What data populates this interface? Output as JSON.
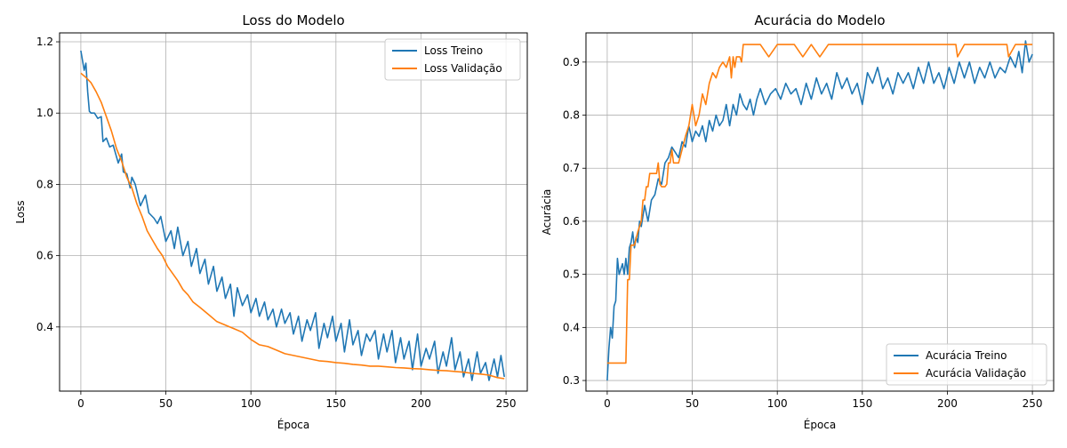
{
  "chart_data": [
    {
      "type": "line",
      "title": "Loss do Modelo",
      "xlabel": "Época",
      "ylabel": "Loss",
      "xlim": [
        -12.5,
        262.5
      ],
      "ylim": [
        0.22,
        1.225
      ],
      "xticks": [
        0,
        50,
        100,
        150,
        200,
        250
      ],
      "xtick_labels": [
        "0",
        "50",
        "100",
        "150",
        "200",
        "250"
      ],
      "yticks": [
        0.4,
        0.6,
        0.8,
        1.0,
        1.2
      ],
      "ytick_labels": [
        "0.4",
        "0.6",
        "0.8",
        "1.0",
        "1.2"
      ],
      "grid": true,
      "legend_position": "upper right",
      "series": [
        {
          "name": "Loss Treino",
          "color": "#1f77b4",
          "x": [
            0,
            2,
            3,
            4,
            5,
            6,
            8,
            10,
            12,
            13,
            15,
            17,
            19,
            22,
            24,
            25,
            27,
            29,
            30,
            32,
            35,
            38,
            40,
            43,
            45,
            47,
            50,
            53,
            55,
            57,
            60,
            63,
            65,
            68,
            70,
            73,
            75,
            78,
            80,
            83,
            85,
            88,
            90,
            92,
            95,
            98,
            100,
            103,
            105,
            108,
            110,
            113,
            115,
            118,
            120,
            123,
            125,
            128,
            130,
            133,
            135,
            138,
            140,
            143,
            145,
            148,
            150,
            153,
            155,
            158,
            160,
            163,
            165,
            168,
            170,
            173,
            175,
            178,
            180,
            183,
            185,
            188,
            190,
            193,
            195,
            198,
            200,
            203,
            205,
            208,
            210,
            213,
            215,
            218,
            220,
            223,
            225,
            228,
            230,
            233,
            235,
            238,
            240,
            243,
            245,
            247,
            249
          ],
          "y": [
            1.175,
            1.12,
            1.14,
            1.06,
            1.005,
            1.0,
            1.0,
            0.985,
            0.99,
            0.92,
            0.93,
            0.905,
            0.91,
            0.86,
            0.885,
            0.835,
            0.83,
            0.79,
            0.82,
            0.8,
            0.74,
            0.77,
            0.72,
            0.705,
            0.69,
            0.71,
            0.64,
            0.67,
            0.62,
            0.68,
            0.6,
            0.64,
            0.57,
            0.62,
            0.55,
            0.59,
            0.52,
            0.57,
            0.5,
            0.54,
            0.48,
            0.52,
            0.43,
            0.51,
            0.46,
            0.49,
            0.44,
            0.48,
            0.43,
            0.47,
            0.42,
            0.45,
            0.4,
            0.45,
            0.41,
            0.44,
            0.38,
            0.43,
            0.36,
            0.42,
            0.39,
            0.44,
            0.34,
            0.41,
            0.37,
            0.43,
            0.36,
            0.41,
            0.33,
            0.42,
            0.35,
            0.39,
            0.32,
            0.38,
            0.36,
            0.39,
            0.31,
            0.38,
            0.33,
            0.39,
            0.3,
            0.37,
            0.31,
            0.36,
            0.28,
            0.38,
            0.29,
            0.34,
            0.31,
            0.36,
            0.27,
            0.33,
            0.29,
            0.37,
            0.28,
            0.33,
            0.26,
            0.31,
            0.25,
            0.33,
            0.27,
            0.3,
            0.25,
            0.31,
            0.26,
            0.32,
            0.26
          ]
        },
        {
          "name": "Loss Validação",
          "color": "#ff7f0e",
          "x": [
            0,
            3,
            6,
            9,
            12,
            15,
            18,
            21,
            24,
            27,
            30,
            33,
            36,
            39,
            42,
            45,
            48,
            51,
            54,
            57,
            60,
            63,
            66,
            70,
            75,
            80,
            85,
            90,
            95,
            100,
            105,
            110,
            115,
            120,
            125,
            130,
            135,
            140,
            145,
            150,
            155,
            160,
            165,
            170,
            175,
            180,
            185,
            190,
            195,
            200,
            205,
            210,
            215,
            220,
            225,
            230,
            235,
            240,
            245,
            249
          ],
          "y": [
            1.112,
            1.1,
            1.085,
            1.06,
            1.03,
            0.99,
            0.95,
            0.9,
            0.865,
            0.82,
            0.79,
            0.745,
            0.71,
            0.67,
            0.645,
            0.62,
            0.6,
            0.57,
            0.55,
            0.53,
            0.505,
            0.49,
            0.47,
            0.455,
            0.435,
            0.415,
            0.405,
            0.395,
            0.385,
            0.365,
            0.35,
            0.345,
            0.335,
            0.325,
            0.32,
            0.315,
            0.31,
            0.305,
            0.303,
            0.3,
            0.298,
            0.295,
            0.293,
            0.29,
            0.29,
            0.288,
            0.286,
            0.285,
            0.283,
            0.282,
            0.28,
            0.278,
            0.277,
            0.275,
            0.273,
            0.27,
            0.268,
            0.265,
            0.258,
            0.255
          ]
        }
      ]
    },
    {
      "type": "line",
      "title": "Acurácia do Modelo",
      "xlabel": "Época",
      "ylabel": "Acurácia",
      "xlim": [
        -12.5,
        262.5
      ],
      "ylim": [
        0.28,
        0.955
      ],
      "xticks": [
        0,
        50,
        100,
        150,
        200,
        250
      ],
      "xtick_labels": [
        "0",
        "50",
        "100",
        "150",
        "200",
        "250"
      ],
      "yticks": [
        0.3,
        0.4,
        0.5,
        0.6,
        0.7,
        0.8,
        0.9
      ],
      "ytick_labels": [
        "0.3",
        "0.4",
        "0.5",
        "0.6",
        "0.7",
        "0.8",
        "0.9"
      ],
      "grid": true,
      "legend_position": "lower right",
      "series": [
        {
          "name": "Acurácia Treino",
          "color": "#1f77b4",
          "x": [
            0,
            1,
            2,
            3,
            4,
            5,
            6,
            7,
            8,
            9,
            10,
            11,
            12,
            13,
            14,
            15,
            16,
            17,
            18,
            19,
            20,
            22,
            24,
            26,
            28,
            30,
            32,
            34,
            36,
            38,
            40,
            42,
            44,
            46,
            48,
            50,
            52,
            54,
            56,
            58,
            60,
            62,
            64,
            66,
            68,
            70,
            72,
            74,
            76,
            78,
            80,
            82,
            84,
            86,
            88,
            90,
            93,
            96,
            99,
            102,
            105,
            108,
            111,
            114,
            117,
            120,
            123,
            126,
            129,
            132,
            135,
            138,
            141,
            144,
            147,
            150,
            153,
            156,
            159,
            162,
            165,
            168,
            171,
            174,
            177,
            180,
            183,
            186,
            189,
            192,
            195,
            198,
            201,
            204,
            207,
            210,
            213,
            216,
            219,
            222,
            225,
            228,
            231,
            234,
            237,
            240,
            242,
            244,
            246,
            248,
            250
          ],
          "y": [
            0.3,
            0.36,
            0.4,
            0.38,
            0.44,
            0.45,
            0.53,
            0.5,
            0.51,
            0.52,
            0.5,
            0.53,
            0.5,
            0.55,
            0.56,
            0.58,
            0.55,
            0.57,
            0.56,
            0.6,
            0.59,
            0.63,
            0.6,
            0.64,
            0.65,
            0.68,
            0.67,
            0.71,
            0.72,
            0.74,
            0.73,
            0.72,
            0.75,
            0.74,
            0.78,
            0.75,
            0.77,
            0.76,
            0.78,
            0.75,
            0.79,
            0.77,
            0.8,
            0.78,
            0.79,
            0.82,
            0.78,
            0.82,
            0.8,
            0.84,
            0.82,
            0.81,
            0.83,
            0.8,
            0.83,
            0.85,
            0.82,
            0.84,
            0.85,
            0.83,
            0.86,
            0.84,
            0.85,
            0.82,
            0.86,
            0.83,
            0.87,
            0.84,
            0.86,
            0.83,
            0.88,
            0.85,
            0.87,
            0.84,
            0.86,
            0.82,
            0.88,
            0.86,
            0.89,
            0.85,
            0.87,
            0.84,
            0.88,
            0.86,
            0.88,
            0.85,
            0.89,
            0.86,
            0.9,
            0.86,
            0.88,
            0.85,
            0.89,
            0.86,
            0.9,
            0.87,
            0.9,
            0.86,
            0.89,
            0.87,
            0.9,
            0.87,
            0.89,
            0.88,
            0.91,
            0.89,
            0.92,
            0.88,
            0.94,
            0.9,
            0.915
          ]
        },
        {
          "name": "Acurácia Validação",
          "color": "#ff7f0e",
          "x": [
            0,
            11,
            12,
            13,
            14,
            16,
            18,
            20,
            21,
            22,
            23,
            24,
            25,
            26,
            27,
            28,
            29,
            30,
            31,
            32,
            33,
            34,
            35,
            36,
            37,
            38,
            39,
            40,
            42,
            44,
            46,
            48,
            50,
            52,
            54,
            56,
            58,
            60,
            62,
            64,
            66,
            68,
            70,
            72,
            73,
            74,
            75,
            76,
            77,
            78,
            79,
            80,
            85,
            90,
            95,
            100,
            105,
            110,
            115,
            120,
            125,
            130,
            140,
            150,
            160,
            170,
            180,
            190,
            200,
            205,
            206,
            210,
            220,
            230,
            235,
            236,
            240,
            245,
            250
          ],
          "y": [
            0.333,
            0.333,
            0.49,
            0.49,
            0.555,
            0.555,
            0.58,
            0.6,
            0.64,
            0.64,
            0.665,
            0.665,
            0.69,
            0.69,
            0.69,
            0.69,
            0.69,
            0.71,
            0.67,
            0.665,
            0.665,
            0.665,
            0.67,
            0.71,
            0.71,
            0.735,
            0.71,
            0.71,
            0.71,
            0.735,
            0.76,
            0.78,
            0.82,
            0.78,
            0.8,
            0.84,
            0.82,
            0.86,
            0.88,
            0.87,
            0.89,
            0.9,
            0.89,
            0.91,
            0.87,
            0.91,
            0.89,
            0.91,
            0.91,
            0.91,
            0.9,
            0.933,
            0.933,
            0.933,
            0.91,
            0.933,
            0.933,
            0.933,
            0.91,
            0.933,
            0.91,
            0.933,
            0.933,
            0.933,
            0.933,
            0.933,
            0.933,
            0.933,
            0.933,
            0.933,
            0.91,
            0.933,
            0.933,
            0.933,
            0.933,
            0.91,
            0.933,
            0.933,
            0.933
          ]
        }
      ]
    }
  ]
}
